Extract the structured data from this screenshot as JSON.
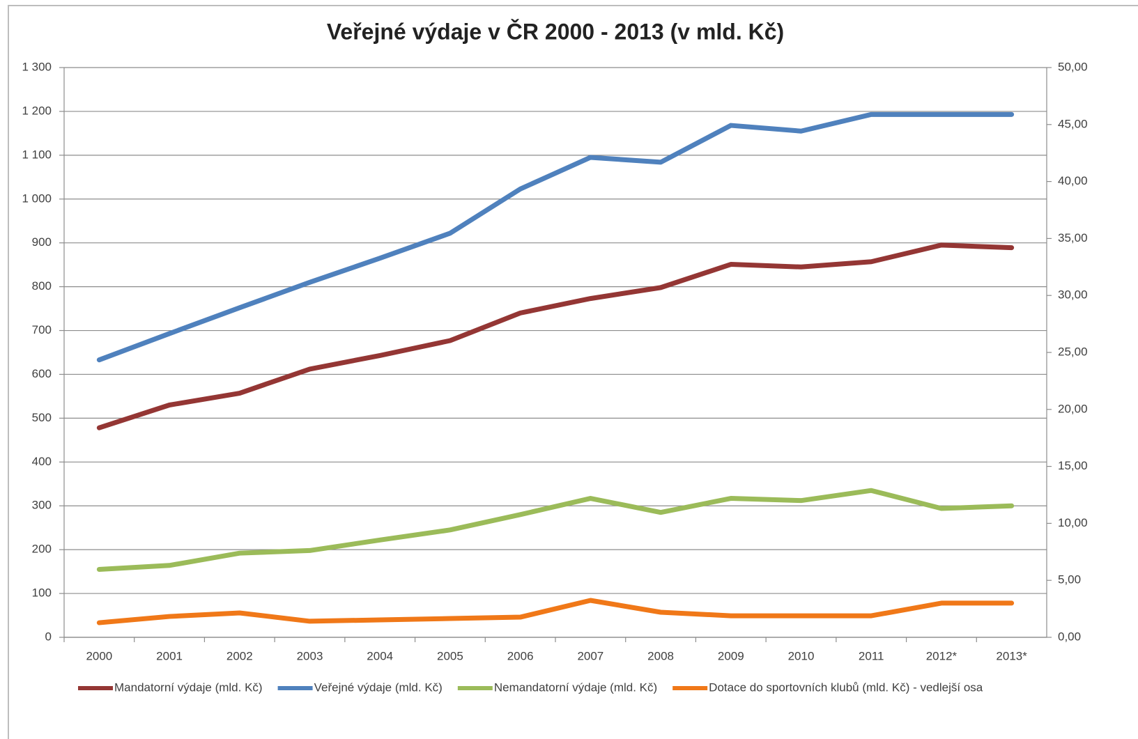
{
  "chart_data": {
    "type": "line",
    "title": "Veřejné výdaje v ČR 2000 - 2013 (v mld. Kč)",
    "categories": [
      "2000",
      "2001",
      "2002",
      "2003",
      "2004",
      "2005",
      "2006",
      "2007",
      "2008",
      "2009",
      "2010",
      "2011",
      "2012*",
      "2013*"
    ],
    "series": [
      {
        "name": "Mandatorní výdaje (mld. Kč)",
        "color": "#943634",
        "values": [
          478,
          530,
          557,
          612,
          643,
          677,
          740,
          773,
          798,
          851,
          845,
          857,
          895,
          889
        ]
      },
      {
        "name": "Veřejné výdaje (mld. Kč)",
        "color": "#4f81bd",
        "values": [
          633,
          693,
          752,
          810,
          865,
          922,
          1023,
          1095,
          1084,
          1168,
          1155,
          1193,
          1193,
          1193
        ]
      },
      {
        "name": "Nemandatorní výdaje (mld. Kč)",
        "color": "#9bbb59",
        "values": [
          155,
          164,
          192,
          198,
          222,
          245,
          280,
          317,
          285,
          317,
          312,
          335,
          294,
          300
        ]
      },
      {
        "name": "Dotace do sportovních klubů (mld. Kč) - vedlejší osa",
        "color": "#f07818",
        "axis": "y2",
        "values": [
          1.28,
          1.83,
          2.14,
          1.41,
          1.53,
          1.65,
          1.77,
          3.24,
          2.2,
          1.89,
          1.89,
          1.89,
          3.0,
          3.0
        ]
      }
    ],
    "ylim": [
      0,
      1300
    ],
    "yticks": [
      0,
      100,
      200,
      300,
      400,
      500,
      600,
      700,
      800,
      900,
      {
        "value": 1000,
        "label": "1 000"
      },
      {
        "value": 1100,
        "label": "1 100"
      },
      {
        "value": 1200,
        "label": "1 200"
      },
      {
        "value": 1300,
        "label": "1 300"
      }
    ],
    "y2lim": [
      0,
      50
    ],
    "y2ticks": [
      {
        "value": 0,
        "label": "0,00"
      },
      {
        "value": 5,
        "label": "5,00"
      },
      {
        "value": 10,
        "label": "10,00"
      },
      {
        "value": 15,
        "label": "15,00"
      },
      {
        "value": 20,
        "label": "20,00"
      },
      {
        "value": 25,
        "label": "25,00"
      },
      {
        "value": 30,
        "label": "30,00"
      },
      {
        "value": 35,
        "label": "35,00"
      },
      {
        "value": 40,
        "label": "40,00"
      },
      {
        "value": 45,
        "label": "45,00"
      },
      {
        "value": 50,
        "label": "50,00"
      }
    ],
    "grid": true,
    "legend": "bottom"
  }
}
